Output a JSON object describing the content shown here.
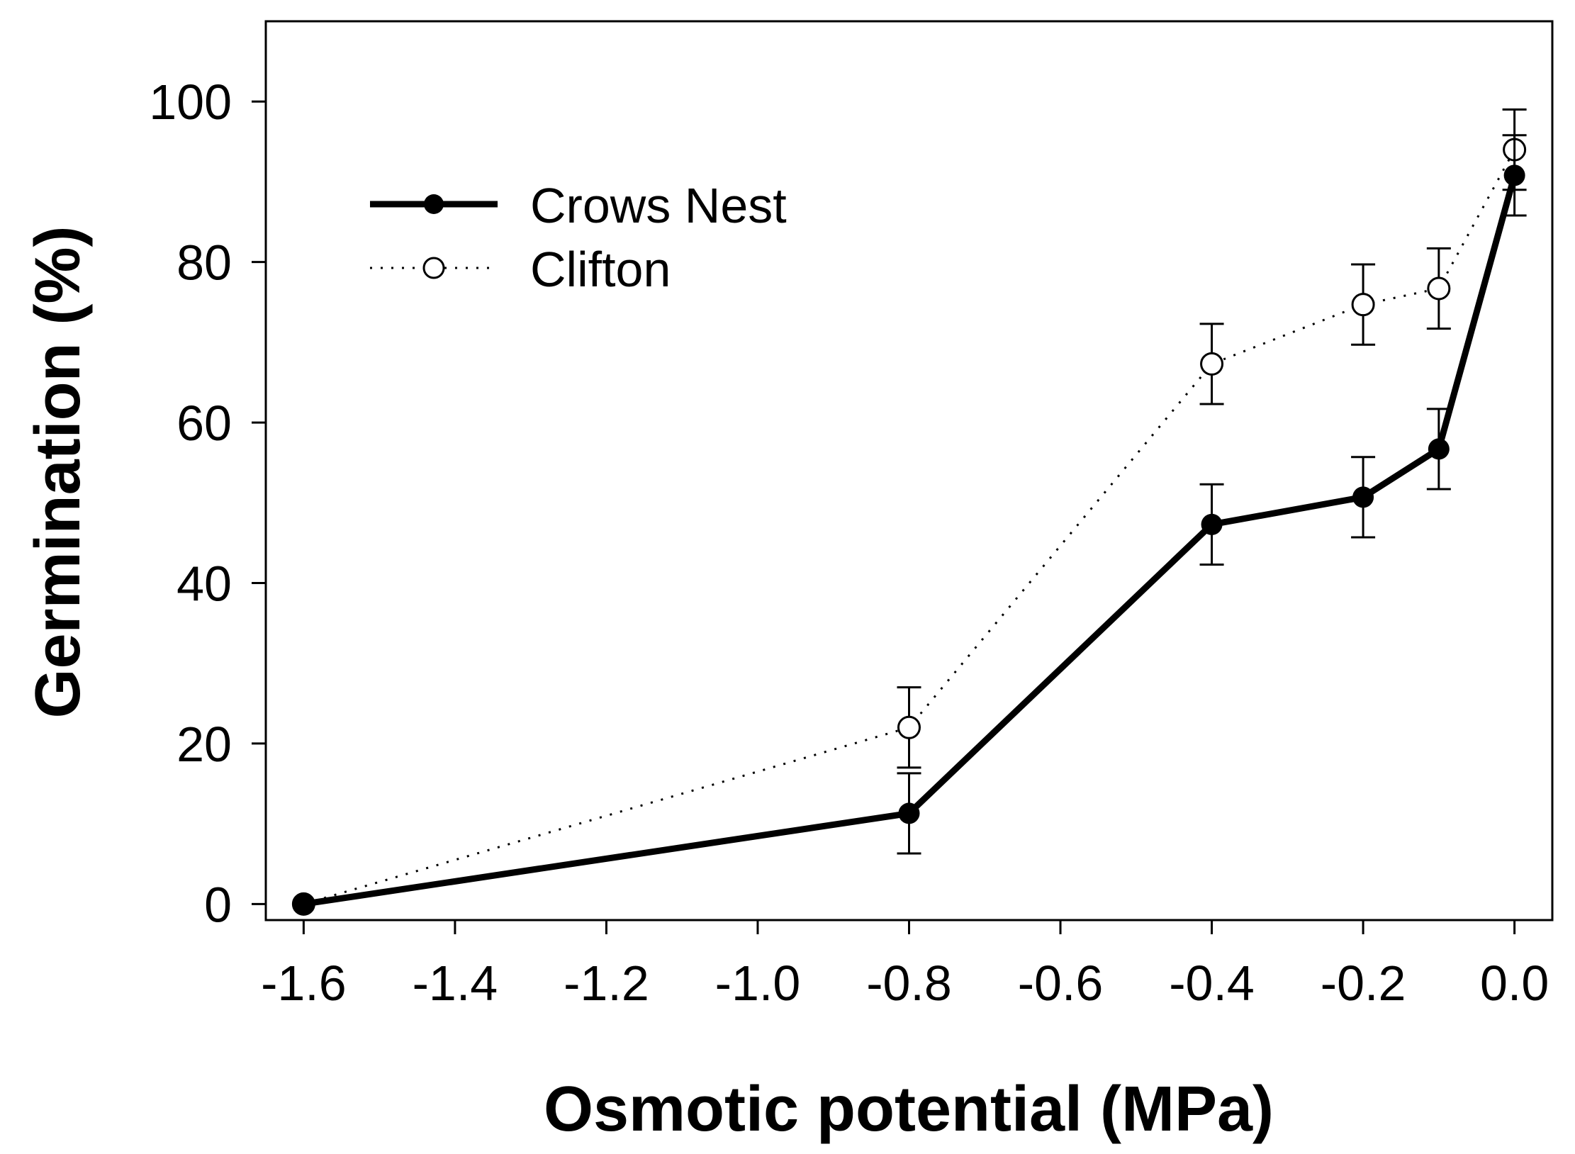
{
  "chart_data": {
    "type": "line",
    "title": "",
    "xlabel": "Osmotic potential (MPa)",
    "ylabel": "Germination (%)",
    "xlim": [
      -1.65,
      0.05
    ],
    "ylim": [
      -2,
      110
    ],
    "xticks": [
      -1.6,
      -1.4,
      -1.2,
      -1.0,
      -0.8,
      -0.6,
      -0.4,
      -0.2,
      0.0
    ],
    "xtick_labels": [
      "-1.6",
      "-1.4",
      "-1.2",
      "-1.0",
      "-0.8",
      "-0.6",
      "-0.4",
      "-0.2",
      "0.0"
    ],
    "yticks": [
      0,
      20,
      40,
      60,
      80,
      100
    ],
    "ytick_labels": [
      "0",
      "20",
      "40",
      "60",
      "80",
      "100"
    ],
    "grid": false,
    "legend_position": "top-left",
    "series": [
      {
        "name": "Crows Nest",
        "style": "solid",
        "marker": "filled-circle",
        "color": "#000000",
        "x": [
          -1.6,
          -0.8,
          -0.4,
          -0.2,
          -0.1,
          0.0
        ],
        "y": [
          0,
          11.3,
          47.3,
          50.7,
          56.7,
          90.8
        ],
        "err": [
          0,
          5,
          5,
          5,
          5,
          5
        ]
      },
      {
        "name": "Clifton",
        "style": "dotted",
        "marker": "open-circle",
        "color": "#000000",
        "x": [
          -1.6,
          -0.8,
          -0.4,
          -0.2,
          -0.1,
          0.0
        ],
        "y": [
          0,
          22,
          67.3,
          74.7,
          76.7,
          94
        ],
        "err": [
          0,
          5,
          5,
          5,
          5,
          5
        ]
      }
    ]
  }
}
